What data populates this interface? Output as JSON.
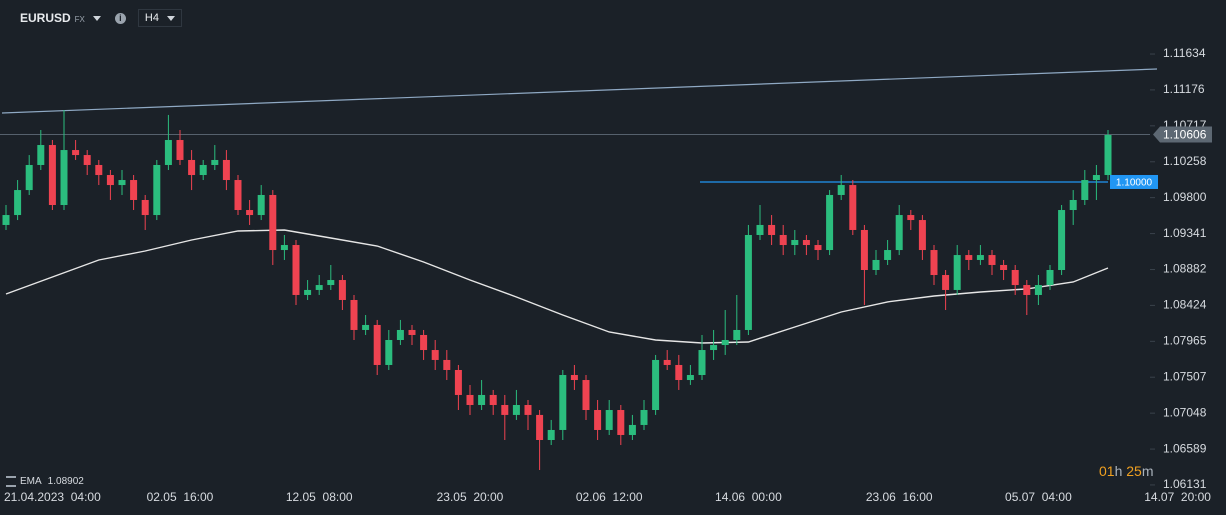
{
  "chart_data": {
    "type": "candlestick",
    "symbol": "EURUSD",
    "market": "FX",
    "timeframe": "H4",
    "categories": [
      "21.04.2023  04:00",
      null,
      null,
      null,
      null,
      null,
      null,
      null,
      null,
      null,
      null,
      null,
      null,
      null,
      null,
      "02.05  16:00",
      null,
      null,
      null,
      null,
      null,
      null,
      null,
      null,
      null,
      null,
      null,
      "12.05  08:00",
      null,
      null,
      null,
      null,
      null,
      null,
      null,
      null,
      null,
      null,
      null,
      null,
      "23.05  20:00",
      null,
      null,
      null,
      null,
      null,
      null,
      null,
      null,
      null,
      null,
      null,
      "02.06  12:00",
      null,
      null,
      null,
      null,
      null,
      null,
      null,
      null,
      null,
      null,
      null,
      "14.06  00:00",
      null,
      null,
      null,
      null,
      null,
      null,
      null,
      null,
      null,
      null,
      null,
      null,
      "23.06  16:00",
      null,
      null,
      null,
      null,
      null,
      null,
      null,
      null,
      null,
      null,
      null,
      "05.07  04:00",
      null,
      null,
      null,
      null,
      null,
      null,
      null,
      null,
      null,
      null,
      null,
      "14.07  20:00"
    ],
    "open": [
      1.09451,
      1.09578,
      1.09897,
      1.10217,
      1.10472,
      1.09706,
      1.10408,
      1.10344,
      1.10217,
      1.10089,
      1.09961,
      1.10025,
      1.0977,
      1.09578,
      1.10217,
      1.10536,
      1.10281,
      1.10089,
      1.10217,
      1.10281,
      1.10025,
      1.09642,
      1.09578,
      1.09834,
      1.09131,
      1.09195,
      1.08557,
      1.08621,
      1.08684,
      1.08748,
      1.08493,
      1.0811,
      1.08174,
      1.07663,
      1.07982,
      1.0811,
      1.08046,
      1.07854,
      1.07727,
      1.07599,
      1.0728,
      1.07152,
      1.0728,
      1.07152,
      1.07025,
      1.07152,
      1.07025,
      1.06705,
      1.06833,
      1.07535,
      1.07471,
      1.07088,
      1.06833,
      1.07088,
      1.06769,
      1.06897,
      1.07088,
      1.07727,
      1.07663,
      1.07471,
      1.07535,
      1.07854,
      1.07918,
      1.07982,
      1.0811,
      1.09323,
      1.09451,
      1.09323,
      1.09195,
      1.09259,
      1.09195,
      1.09131,
      1.09834,
      1.09961,
      1.09387,
      1.08876,
      1.09004,
      1.09131,
      1.09578,
      1.09514,
      1.09131,
      1.08812,
      1.08621,
      1.09067,
      1.09004,
      1.09067,
      1.0894,
      1.08876,
      1.08684,
      1.08557,
      1.08684,
      1.08876,
      1.09642,
      1.0977,
      1.10025,
      1.10089,
      null,
      null,
      null,
      null,
      null,
      null
    ],
    "high": [
      1.09706,
      1.10025,
      1.10344,
      1.10664,
      1.10536,
      1.10919,
      1.10536,
      1.10408,
      1.10281,
      1.10153,
      1.10153,
      1.10089,
      1.09834,
      1.10281,
      1.10856,
      1.10664,
      1.10408,
      1.10281,
      1.10472,
      1.10408,
      1.10089,
      1.0977,
      1.09961,
      1.09897,
      1.09323,
      1.09259,
      1.08748,
      1.08812,
      1.0894,
      1.08812,
      1.08557,
      1.08301,
      1.08238,
      1.0811,
      1.08238,
      1.08174,
      1.0811,
      1.07982,
      1.07854,
      1.07663,
      1.07408,
      1.07471,
      1.07344,
      1.0728,
      1.07344,
      1.07216,
      1.07088,
      1.06961,
      1.07599,
      1.07663,
      1.07535,
      1.07216,
      1.07216,
      1.07152,
      1.07025,
      1.07216,
      1.07791,
      1.07854,
      1.07791,
      1.07663,
      1.08046,
      1.0811,
      1.08365,
      1.08557,
      1.09451,
      1.09706,
      1.09578,
      1.09451,
      1.09387,
      1.09323,
      1.09259,
      1.09897,
      1.10089,
      1.10025,
      1.09451,
      1.09131,
      1.09259,
      1.09706,
      1.09642,
      1.09578,
      1.09195,
      1.08876,
      1.09195,
      1.09131,
      1.09195,
      1.09131,
      1.09004,
      1.0894,
      1.08748,
      1.08812,
      1.0894,
      1.09706,
      1.09897,
      1.10153,
      1.10217,
      1.10664,
      null,
      null,
      null,
      null,
      null,
      null
    ],
    "low": [
      1.09387,
      1.09514,
      1.09834,
      1.10153,
      1.09642,
      1.09642,
      1.10281,
      1.10089,
      1.09961,
      1.0977,
      1.09834,
      1.09642,
      1.09387,
      1.09514,
      1.10153,
      1.10217,
      1.09897,
      1.10025,
      1.10153,
      1.09897,
      1.09578,
      1.09451,
      1.09514,
      1.0894,
      1.09004,
      1.08429,
      1.08493,
      1.08557,
      1.08621,
      1.08365,
      1.07982,
      1.08046,
      1.07535,
      1.07599,
      1.07918,
      1.07918,
      1.07727,
      1.07599,
      1.07471,
      1.07088,
      1.07025,
      1.07088,
      1.07025,
      1.06705,
      1.06961,
      1.06833,
      1.06322,
      1.06641,
      1.06705,
      1.07344,
      1.06961,
      1.06705,
      1.06769,
      1.06641,
      1.06705,
      1.06833,
      1.07025,
      1.07599,
      1.07344,
      1.07408,
      1.07471,
      1.07727,
      1.07791,
      1.07918,
      1.08046,
      1.09259,
      1.09195,
      1.09067,
      1.09067,
      1.09067,
      1.09004,
      1.09067,
      1.0977,
      1.09323,
      1.08429,
      1.08812,
      1.0894,
      1.09067,
      1.09387,
      1.09004,
      1.08684,
      1.08365,
      1.08557,
      1.08876,
      1.0894,
      1.08812,
      1.08748,
      1.08557,
      1.08301,
      1.08429,
      1.08621,
      1.08812,
      1.09451,
      1.09706,
      1.0977,
      1.10025,
      null,
      null,
      null,
      null,
      null,
      null
    ],
    "close": [
      1.09578,
      1.09897,
      1.10217,
      1.10472,
      1.09706,
      1.10408,
      1.10344,
      1.10217,
      1.10089,
      1.09961,
      1.10025,
      1.0977,
      1.09578,
      1.10217,
      1.10536,
      1.10281,
      1.10089,
      1.10217,
      1.10281,
      1.10025,
      1.09642,
      1.09578,
      1.09834,
      1.09131,
      1.09195,
      1.08557,
      1.08621,
      1.08684,
      1.08748,
      1.08493,
      1.0811,
      1.08174,
      1.07663,
      1.07982,
      1.0811,
      1.08046,
      1.07854,
      1.07727,
      1.07599,
      1.0728,
      1.07152,
      1.0728,
      1.07152,
      1.07025,
      1.07152,
      1.07025,
      1.06705,
      1.06833,
      1.07535,
      1.07471,
      1.07088,
      1.06833,
      1.07088,
      1.06769,
      1.06897,
      1.07088,
      1.07727,
      1.07663,
      1.07471,
      1.07535,
      1.07854,
      1.07918,
      1.07982,
      1.0811,
      1.09323,
      1.09451,
      1.09323,
      1.09195,
      1.09259,
      1.09195,
      1.09131,
      1.09834,
      1.09961,
      1.09387,
      1.08876,
      1.09004,
      1.09131,
      1.09578,
      1.09514,
      1.09131,
      1.08812,
      1.08621,
      1.09067,
      1.09004,
      1.09067,
      1.0894,
      1.08876,
      1.08684,
      1.08557,
      1.08684,
      1.08876,
      1.09642,
      1.0977,
      1.10025,
      1.10089,
      1.106,
      null,
      null,
      null,
      null,
      null,
      null
    ],
    "colors": {
      "up": "#2bbd7e",
      "down": "#ef4351"
    },
    "ylim": [
      1.06092,
      1.12324
    ],
    "yticks": [
      1.11634,
      1.11176,
      1.10717,
      1.10258,
      {
        "value": 1.098,
        "label": "1.09800"
      },
      1.09341,
      1.08882,
      1.08424,
      1.07965,
      1.07507,
      1.07048,
      1.06589,
      1.06131
    ],
    "grid": false,
    "ema": {
      "name": "EMA",
      "legend_value": 1.08902,
      "color": "#e6e6e6",
      "x": [
        0,
        4,
        8,
        12,
        16,
        20,
        24,
        28,
        32,
        36,
        40,
        44,
        48,
        52,
        56,
        60,
        64,
        68,
        72,
        76,
        80,
        84,
        88,
        92,
        95
      ],
      "values": [
        1.0857,
        1.08787,
        1.09004,
        1.09119,
        1.09259,
        1.09374,
        1.09387,
        1.09285,
        1.09183,
        1.08978,
        1.08748,
        1.08531,
        1.08301,
        1.08084,
        1.07982,
        1.07944,
        1.07957,
        1.08148,
        1.0834,
        1.08468,
        1.08544,
        1.08595,
        1.08634,
        1.08723,
        1.08902
      ]
    },
    "trendline": {
      "color": "#8fa9c4",
      "values": [
        1.10881,
        1.11443
      ]
    },
    "level": {
      "value": 1.1,
      "label": "1.10000",
      "color": "#2196f3"
    },
    "last_price": 1.10606,
    "timer": {
      "hours": "01",
      "h": "h",
      "minutes": "25",
      "m": "m"
    }
  }
}
